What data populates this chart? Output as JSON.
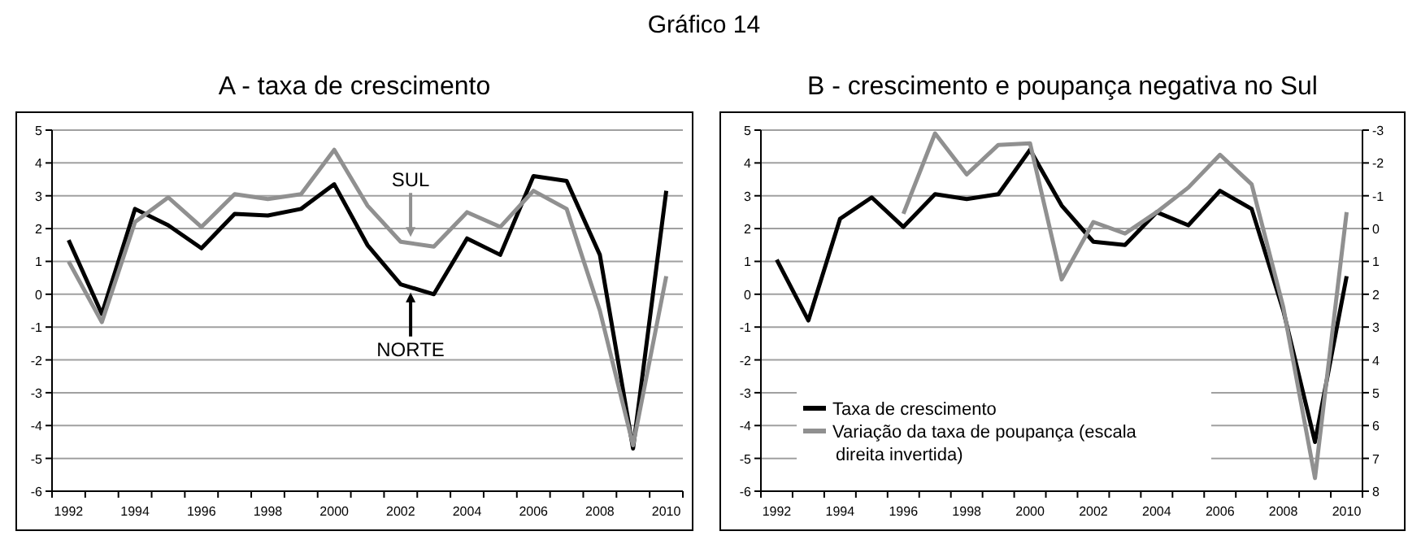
{
  "chart_data": [
    {
      "type": "line",
      "title": "Gráfico 14",
      "subtitle": "A - taxa de crescimento",
      "categories": [
        "1992",
        null,
        "1994",
        null,
        "1996",
        null,
        "1998",
        null,
        "2000",
        null,
        "2002",
        null,
        "2004",
        null,
        "2006",
        null,
        "2008",
        null,
        "2010"
      ],
      "ylim": [
        -6,
        5
      ],
      "yticks": [
        -6,
        -5,
        -4,
        -3,
        -2,
        -1,
        0,
        1,
        2,
        3,
        4,
        5
      ],
      "grid": "y",
      "marker": "none",
      "line_style": "solid",
      "annotations": [
        {
          "text": "SUL",
          "x": "2002",
          "y": 1.6
        },
        {
          "text": "NORTE",
          "x": "2002",
          "y": 0.2
        }
      ],
      "series": [
        {
          "color": "#000000",
          "values": [
            1.65,
            -0.6,
            2.6,
            2.1,
            1.4,
            2.45,
            2.4,
            2.6,
            3.35,
            1.5,
            0.3,
            0.0,
            1.7,
            1.2,
            3.6,
            3.45,
            1.2,
            -4.7,
            3.15
          ]
        },
        {
          "color": "#909090",
          "values": [
            1.0,
            -0.85,
            2.2,
            2.95,
            2.05,
            3.05,
            2.9,
            3.05,
            4.4,
            2.7,
            1.6,
            1.45,
            2.5,
            2.05,
            3.15,
            2.6,
            -0.5,
            -4.6,
            0.55
          ]
        }
      ]
    },
    {
      "type": "line",
      "subtitle": "B - crescimento e poupança negativa no Sul",
      "categories": [
        "1992",
        null,
        "1994",
        null,
        "1996",
        null,
        "1998",
        null,
        "2000",
        null,
        "2002",
        null,
        "2004",
        null,
        "2006",
        null,
        "2008",
        null,
        "2010"
      ],
      "ylim": [
        -6,
        5
      ],
      "yticks": [
        -6,
        -5,
        -4,
        -3,
        -2,
        -1,
        0,
        1,
        2,
        3,
        4,
        5
      ],
      "y2lim": [
        8,
        -3
      ],
      "y2ticks": [
        -3,
        -2,
        -1,
        0,
        1,
        2,
        3,
        4,
        5,
        6,
        7,
        8
      ],
      "grid": "y",
      "legend": "bottom left",
      "marker": "none",
      "line_style": "solid",
      "series": [
        {
          "name": "Taxa de crescimento",
          "color": "#000000",
          "values": [
            1.05,
            -0.8,
            2.3,
            2.95,
            2.05,
            3.05,
            2.9,
            3.05,
            4.4,
            2.7,
            1.6,
            1.5,
            2.5,
            2.1,
            3.15,
            2.6,
            -0.5,
            -4.5,
            0.55
          ]
        },
        {
          "name": "Variação da taxa de poupança (escala direita invertida)",
          "color": "#909090",
          "axis": "y2",
          "values": [
            null,
            null,
            null,
            null,
            -0.45,
            -2.9,
            -1.65,
            -2.55,
            -2.6,
            1.55,
            -0.2,
            0.15,
            -0.5,
            -1.25,
            -2.25,
            -1.35,
            2.4,
            7.6,
            -0.5
          ]
        }
      ]
    }
  ]
}
